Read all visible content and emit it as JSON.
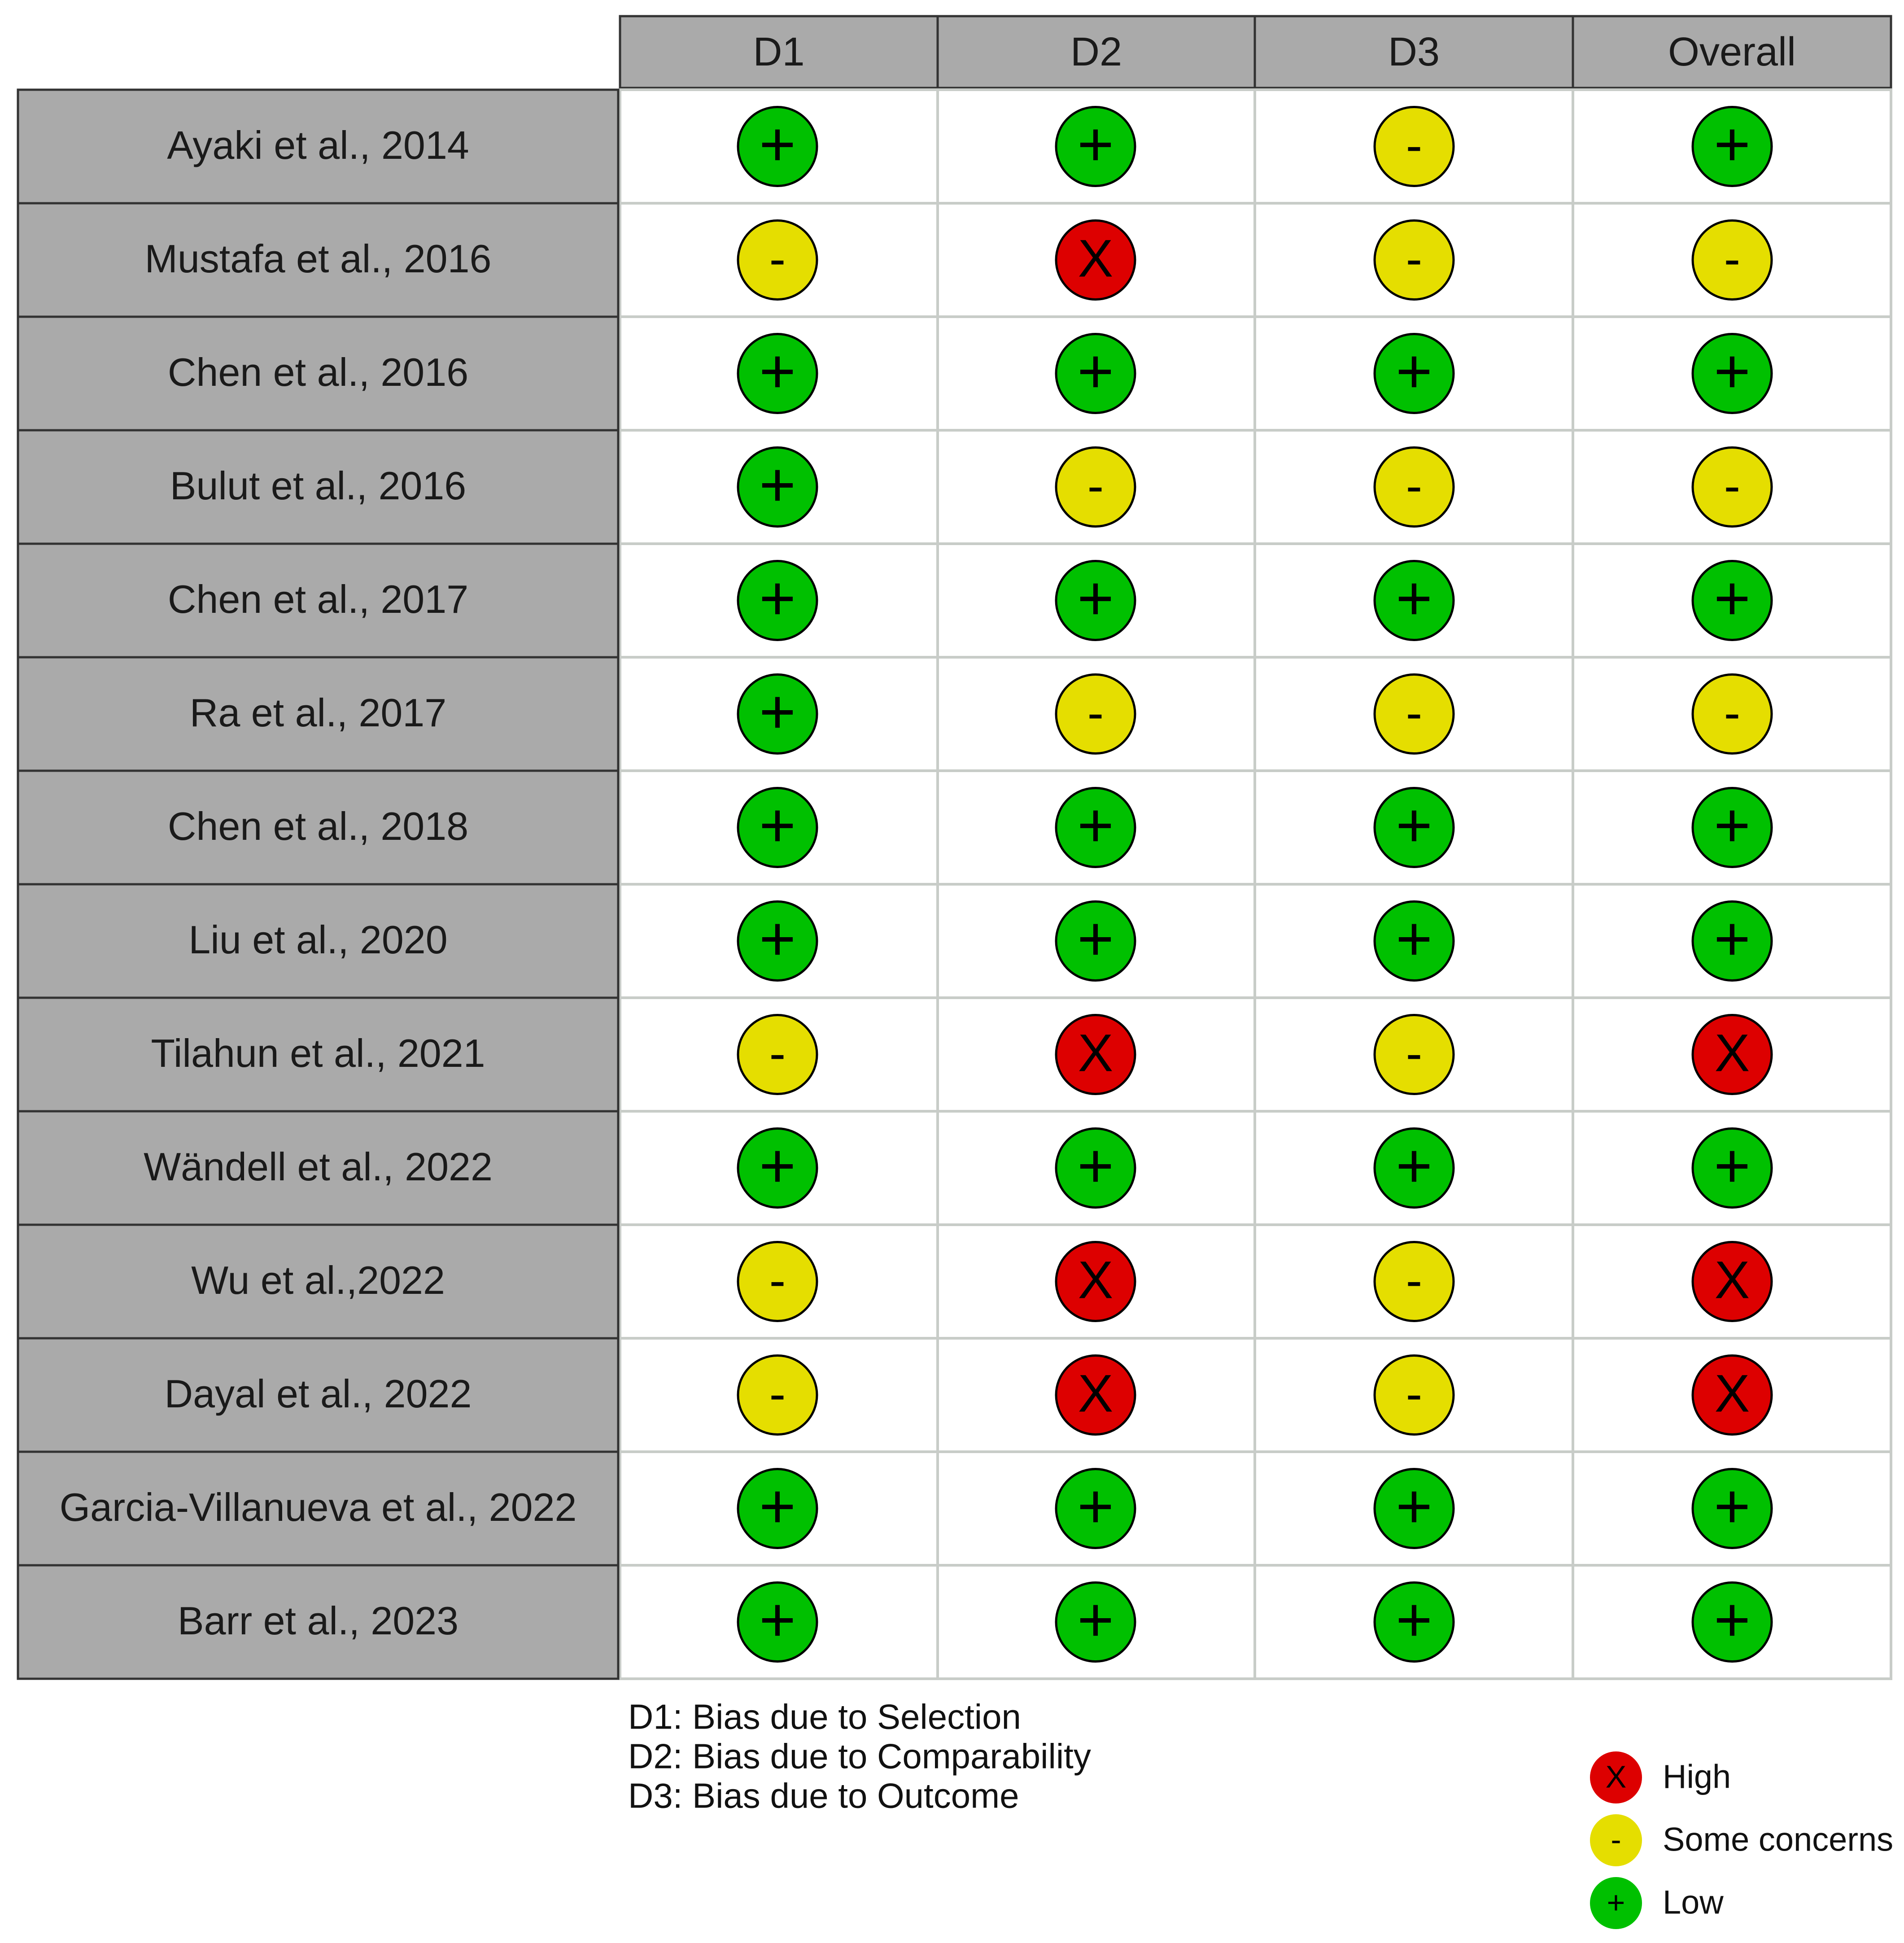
{
  "chart_data": {
    "type": "table",
    "columns": [
      "D1",
      "D2",
      "D3",
      "Overall"
    ],
    "rows": [
      {
        "study": "Ayaki et al., 2014",
        "judgements": [
          "low",
          "low",
          "some",
          "low"
        ]
      },
      {
        "study": "Mustafa et al., 2016",
        "judgements": [
          "some",
          "high",
          "some",
          "some"
        ]
      },
      {
        "study": "Chen et al., 2016",
        "judgements": [
          "low",
          "low",
          "low",
          "low"
        ]
      },
      {
        "study": "Bulut et al., 2016",
        "judgements": [
          "low",
          "some",
          "some",
          "some"
        ]
      },
      {
        "study": "Chen et al., 2017",
        "judgements": [
          "low",
          "low",
          "low",
          "low"
        ]
      },
      {
        "study": "Ra et al., 2017",
        "judgements": [
          "low",
          "some",
          "some",
          "some"
        ]
      },
      {
        "study": "Chen et al., 2018",
        "judgements": [
          "low",
          "low",
          "low",
          "low"
        ]
      },
      {
        "study": "Liu et al., 2020",
        "judgements": [
          "low",
          "low",
          "low",
          "low"
        ]
      },
      {
        "study": "Tilahun et al., 2021",
        "judgements": [
          "some",
          "high",
          "some",
          "high"
        ]
      },
      {
        "study": "Wändell et al., 2022",
        "judgements": [
          "low",
          "low",
          "low",
          "low"
        ]
      },
      {
        "study": "Wu et al.,2022",
        "judgements": [
          "some",
          "high",
          "some",
          "high"
        ]
      },
      {
        "study": "Dayal et al., 2022",
        "judgements": [
          "some",
          "high",
          "some",
          "high"
        ]
      },
      {
        "study": "Garcia-Villanueva et al., 2022",
        "judgements": [
          "low",
          "low",
          "low",
          "low"
        ]
      },
      {
        "study": "Barr et al., 2023",
        "judgements": [
          "low",
          "low",
          "low",
          "low"
        ]
      }
    ],
    "levels": {
      "high": {
        "symbol": "X",
        "label": "High",
        "color": "#dd0000"
      },
      "some": {
        "symbol": "-",
        "label": "Some concerns",
        "color": "#e5de00"
      },
      "low": {
        "symbol": "+",
        "label": "Low",
        "color": "#00c000"
      }
    },
    "legend_order": [
      "high",
      "some",
      "low"
    ],
    "domain_notes": [
      "D1: Bias due to Selection",
      "D2: Bias due to Comparability",
      "D3: Bias due to Outcome"
    ]
  },
  "colors": {
    "header_fill": "#aaaaaa",
    "border": "#333333",
    "grid": "#c8ccc8"
  }
}
